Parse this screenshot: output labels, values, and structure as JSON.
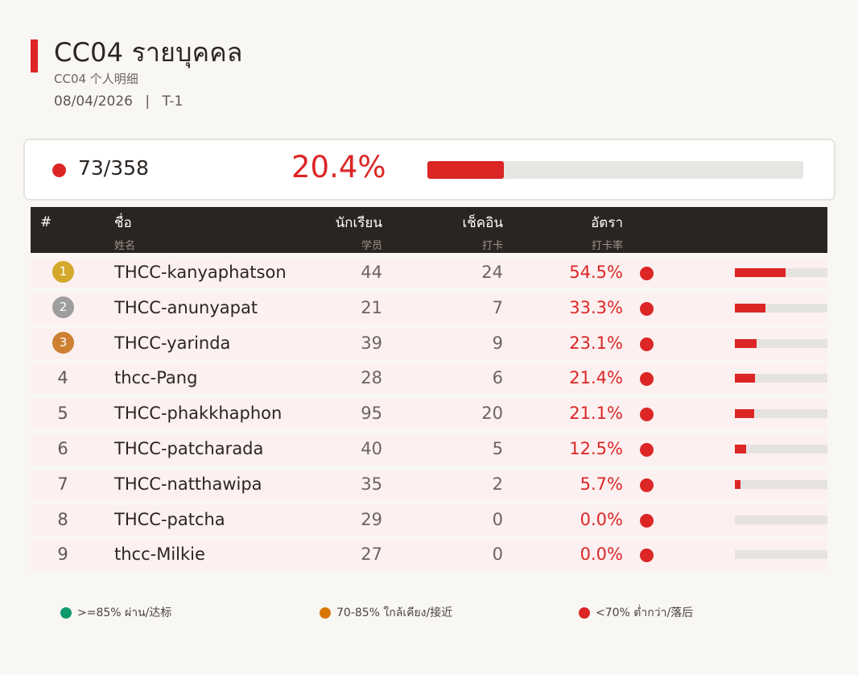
{
  "header": {
    "title": "CC04  รายบุคคล",
    "subtitle": "CC04  个人明细",
    "date": "08/04/2026",
    "separator": "|",
    "period": "T-1"
  },
  "summary": {
    "count": "73/358",
    "percent": "20.4%",
    "progress": 0.204,
    "status_color": "#dc2626"
  },
  "table": {
    "headers": {
      "rank": "#",
      "name": "ชื่อ",
      "name_sub": "姓名",
      "students": "นักเรียน",
      "students_sub": "学员",
      "checkin": "เช็คอิน",
      "checkin_sub": "打卡",
      "rate": "อัตรา",
      "rate_sub": "打卡率"
    },
    "rows": [
      {
        "rank": "1",
        "medal": "gold",
        "name": "THCC-kanyaphatson",
        "students": "44",
        "checkin": "24",
        "rate": "54.5%",
        "rate_value": 0.545,
        "status": "red"
      },
      {
        "rank": "2",
        "medal": "silver",
        "name": "THCC-anunyapat",
        "students": "21",
        "checkin": "7",
        "rate": "33.3%",
        "rate_value": 0.333,
        "status": "red"
      },
      {
        "rank": "3",
        "medal": "bronze",
        "name": "THCC-yarinda",
        "students": "39",
        "checkin": "9",
        "rate": "23.1%",
        "rate_value": 0.231,
        "status": "red"
      },
      {
        "rank": "4",
        "medal": "",
        "name": "thcc-Pang",
        "students": "28",
        "checkin": "6",
        "rate": "21.4%",
        "rate_value": 0.214,
        "status": "red"
      },
      {
        "rank": "5",
        "medal": "",
        "name": "THCC-phakkhaphon",
        "students": "95",
        "checkin": "20",
        "rate": "21.1%",
        "rate_value": 0.211,
        "status": "red"
      },
      {
        "rank": "6",
        "medal": "",
        "name": "THCC-patcharada",
        "students": "40",
        "checkin": "5",
        "rate": "12.5%",
        "rate_value": 0.125,
        "status": "red"
      },
      {
        "rank": "7",
        "medal": "",
        "name": "THCC-natthawipa",
        "students": "35",
        "checkin": "2",
        "rate": "5.7%",
        "rate_value": 0.057,
        "status": "red"
      },
      {
        "rank": "8",
        "medal": "",
        "name": "THCC-patcha",
        "students": "29",
        "checkin": "0",
        "rate": "0.0%",
        "rate_value": 0.0,
        "status": "red"
      },
      {
        "rank": "9",
        "medal": "",
        "name": "thcc-Milkie",
        "students": "27",
        "checkin": "0",
        "rate": "0.0%",
        "rate_value": 0.0,
        "status": "red"
      }
    ]
  },
  "legend": [
    {
      "label": ">=85% ผ่าน/达标",
      "color": "#0f9a6e"
    },
    {
      "label": "70-85% ใกล้เคียง/接近",
      "color": "#d97706"
    },
    {
      "label": "<70% ต่ำกว่า/落后",
      "color": "#dc2626"
    }
  ],
  "colors": {
    "accent": "#dc2626",
    "gold": "#d4a82c",
    "silver": "#9e9e9e",
    "bronze": "#cd7f32",
    "header_bg": "#2b2522"
  }
}
